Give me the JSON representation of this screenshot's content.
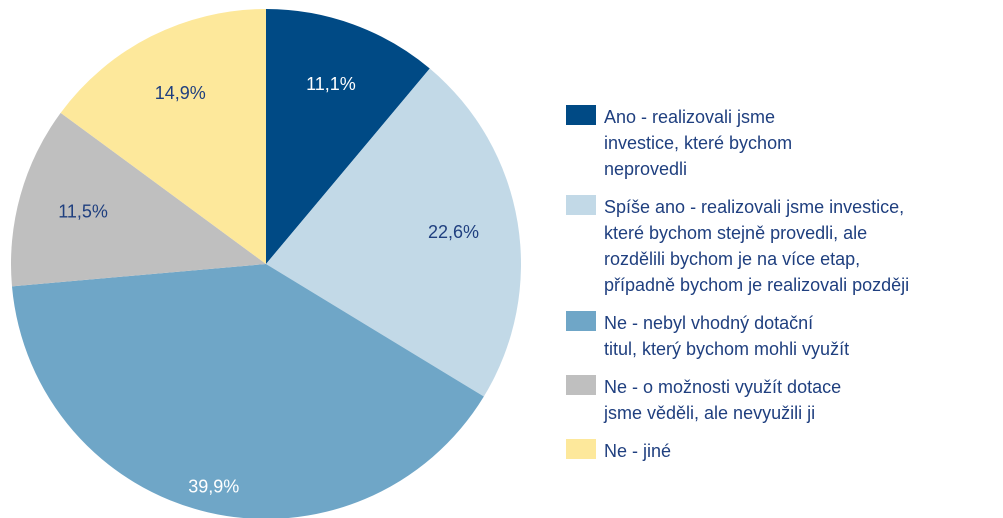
{
  "chart_data": {
    "type": "pie",
    "series": [
      {
        "name": "Ano - realizovali jsme\ninvestice, které bychom\nneprovedli",
        "color": "#004a85",
        "values": [
          11.1
        ],
        "value_labels": [
          "11,1%"
        ]
      },
      {
        "name": "Spíše ano - realizovali jsme investice,\nkteré bychom stejně provedli, ale\nrozdělili bychom je na více etap,\npřípadně bychom je realizovali později",
        "color": "#c2d9e7",
        "values": [
          22.6
        ],
        "value_labels": [
          "22,6%"
        ]
      },
      {
        "name": "Ne - nebyl vhodný dotační\ntitul, který bychom mohli využít",
        "color": "#6fa6c7",
        "values": [
          39.9
        ],
        "value_labels": [
          "39,9%"
        ]
      },
      {
        "name": "Ne - o možnosti využít dotace\njsme věděli, ale nevyužili ji",
        "color": "#bfbfbf",
        "values": [
          11.5
        ],
        "value_labels": [
          "11,5%"
        ]
      },
      {
        "name": "Ne - jiné",
        "color": "#fde89b",
        "values": [
          14.9
        ],
        "value_labels": [
          "14,9%"
        ]
      }
    ]
  }
}
